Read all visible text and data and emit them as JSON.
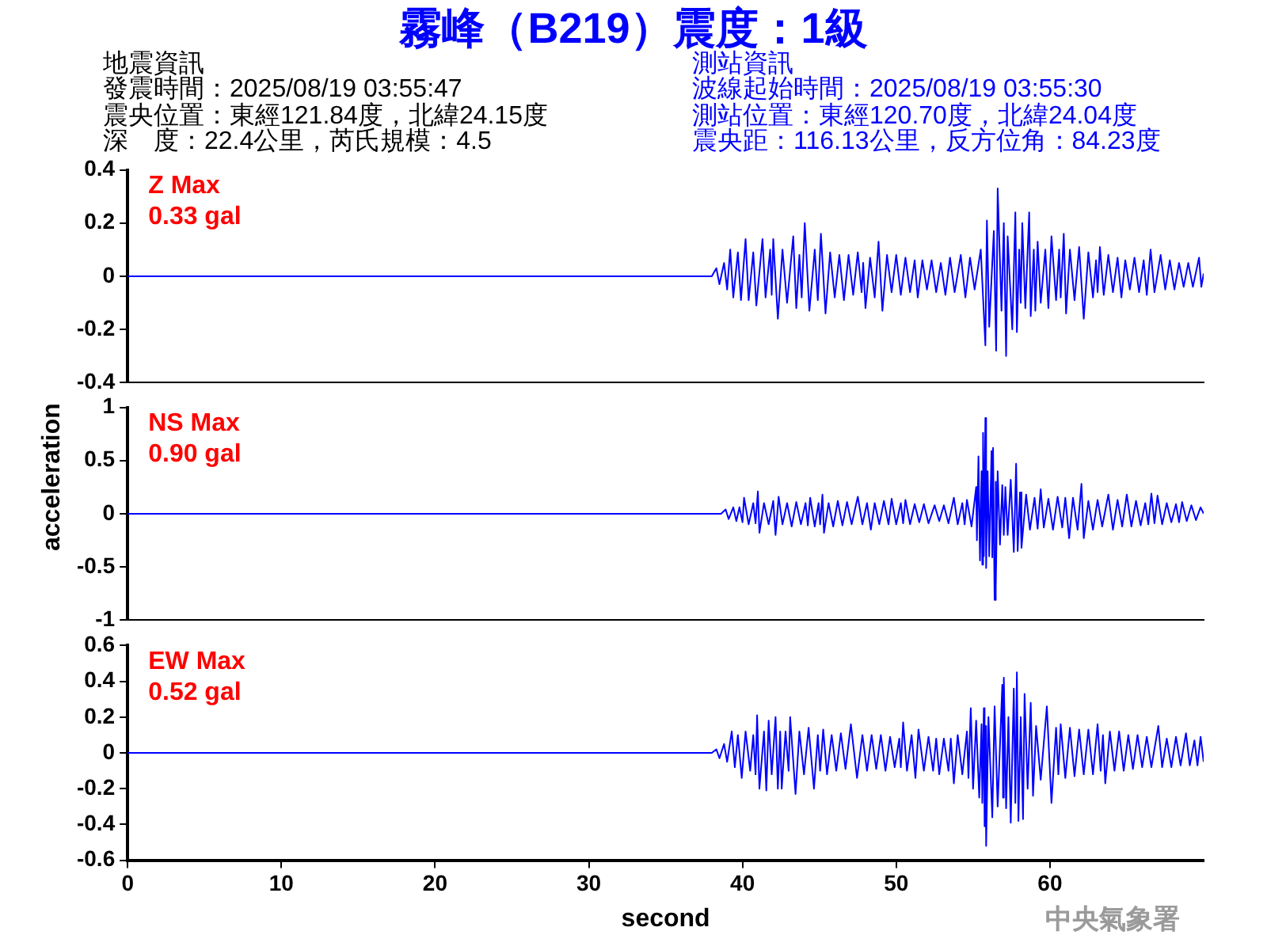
{
  "chart_data": [
    {
      "type": "line",
      "title": "霧峰（B219）震度：1級",
      "annotations": [
        "Z Max\n0.33 gal",
        "地震資訊",
        "發震時間：2025/08/19 03:55:47",
        "震央位置：東經121.84度，北緯24.15度",
        "深　度：22.4公里，芮氏規模：4.5",
        "測站資訊",
        "波線起始時間：2025/08/19 03:55:30",
        "測站位置：東經120.70度，北緯24.04度",
        "震央距：116.13公里，反方位角：84.23度"
      ],
      "xlim": [
        0,
        70
      ],
      "ylim": [
        -0.4,
        0.4
      ],
      "yticks": [
        -0.4,
        -0.2,
        0,
        0.2,
        0.4
      ],
      "tick_labels": "y",
      "series": [
        {
          "color": "#0000ff",
          "x": [
            0,
            10,
            20,
            30,
            38,
            38.3,
            38.5,
            38.8,
            39.0,
            39.2,
            39.4,
            39.7,
            39.9,
            40.2,
            40.4,
            40.7,
            40.9,
            41.3,
            41.5,
            41.8,
            41.9,
            42.0,
            42.3,
            42.6,
            42.9,
            43.3,
            43.5,
            43.7,
            43.85,
            44.05,
            44.35,
            44.7,
            44.9,
            45.1,
            45.4,
            45.7,
            46.0,
            46.3,
            46.6,
            46.9,
            47.2,
            47.5,
            47.75,
            47.85,
            48.0,
            48.3,
            48.6,
            48.85,
            49.1,
            49.4,
            49.7,
            50.0,
            50.3,
            50.6,
            50.9,
            51.2,
            51.4,
            51.7,
            52.0,
            52.3,
            52.6,
            52.9,
            53.2,
            53.5,
            53.8,
            54.2,
            54.5,
            54.8,
            55.1,
            55.5,
            55.8,
            55.9,
            56.05,
            56.35,
            56.5,
            56.6,
            56.85,
            57.0,
            57.15,
            57.25,
            57.55,
            57.75,
            57.85,
            58.0,
            58.1,
            58.2,
            58.4,
            58.65,
            58.75,
            58.95,
            59.05,
            59.2,
            59.4,
            59.7,
            59.9,
            60.1,
            60.4,
            60.6,
            60.7,
            60.9,
            61.05,
            61.3,
            61.6,
            61.9,
            62.2,
            62.5,
            62.8,
            63.0,
            63.1,
            63.25,
            63.5,
            63.8,
            64.1,
            64.4,
            64.65,
            64.9,
            65.2,
            65.5,
            65.8,
            66.1,
            66.3,
            66.55,
            66.8,
            67.2,
            67.5,
            67.8,
            68.1,
            68.4,
            68.7,
            69.0,
            69.3,
            69.7,
            69.85,
            70.0
          ],
          "values": [
            0,
            0,
            0,
            0,
            0,
            0.03,
            -0.03,
            0.05,
            -0.05,
            0.1,
            -0.08,
            0.09,
            -0.09,
            0.14,
            -0.09,
            0.09,
            -0.11,
            0.14,
            -0.08,
            0.1,
            -0.07,
            0.14,
            -0.16,
            0.1,
            -0.1,
            0.15,
            -0.12,
            0.08,
            -0.08,
            0.2,
            -0.13,
            0.1,
            -0.09,
            0.16,
            -0.14,
            0.09,
            -0.08,
            0.08,
            -0.09,
            0.08,
            -0.07,
            0.09,
            -0.06,
            0.05,
            -0.12,
            0.07,
            -0.08,
            0.13,
            -0.13,
            0.08,
            -0.06,
            0.08,
            -0.07,
            0.07,
            -0.06,
            0.06,
            -0.08,
            0.06,
            -0.05,
            0.06,
            -0.06,
            0.05,
            -0.07,
            0.07,
            -0.06,
            0.08,
            -0.08,
            0.07,
            -0.05,
            0.1,
            -0.26,
            0.21,
            -0.19,
            0.17,
            -0.28,
            0.33,
            -0.13,
            0.2,
            -0.3,
            0.15,
            -0.2,
            0.24,
            -0.21,
            0.1,
            -0.1,
            0.2,
            -0.12,
            0.24,
            -0.15,
            0.1,
            -0.13,
            0.13,
            -0.1,
            0.1,
            -0.12,
            0.15,
            -0.09,
            0.1,
            -0.08,
            0.16,
            -0.14,
            0.1,
            -0.09,
            0.11,
            -0.16,
            0.09,
            -0.08,
            0.06,
            -0.06,
            0.11,
            -0.07,
            0.08,
            -0.06,
            0.07,
            -0.08,
            0.06,
            -0.05,
            0.07,
            -0.06,
            0.06,
            -0.07,
            0.1,
            -0.06,
            0.08,
            -0.05,
            0.06,
            -0.05,
            0.05,
            -0.04,
            0.05,
            -0.04,
            0.07,
            -0.04,
            0.01
          ]
        }
      ]
    },
    {
      "type": "line",
      "ylabel": "acceleration",
      "annotations": [
        "NS Max\n0.90 gal"
      ],
      "xlim": [
        0,
        70
      ],
      "ylim": [
        -1,
        1
      ],
      "yticks": [
        -1,
        -0.5,
        0,
        0.5,
        1
      ],
      "tick_labels": "y",
      "series": [
        {
          "color": "#0000ff",
          "x": [
            0,
            10,
            20,
            30,
            38.6,
            38.9,
            39.1,
            39.4,
            39.6,
            39.8,
            40.0,
            40.1,
            40.4,
            40.7,
            40.85,
            41.0,
            41.1,
            41.4,
            41.7,
            42.0,
            42.15,
            42.35,
            42.6,
            42.9,
            43.2,
            43.5,
            43.8,
            44.1,
            44.25,
            44.4,
            44.7,
            44.95,
            45.05,
            45.2,
            45.3,
            45.6,
            45.9,
            46.2,
            46.5,
            46.8,
            47.1,
            47.5,
            47.8,
            48.1,
            48.35,
            48.6,
            48.9,
            49.2,
            49.5,
            49.7,
            50.0,
            50.3,
            50.45,
            50.6,
            50.9,
            51.2,
            51.5,
            51.8,
            52.1,
            52.5,
            52.8,
            53.1,
            53.4,
            53.75,
            54.0,
            54.3,
            54.45,
            54.6,
            54.9,
            55.2,
            55.25,
            55.35,
            55.45,
            55.55,
            55.6,
            55.65,
            55.7,
            55.8,
            55.85,
            55.95,
            56.05,
            56.2,
            56.25,
            56.3,
            56.4,
            56.45,
            56.5,
            56.6,
            56.75,
            56.9,
            57.0,
            57.1,
            57.25,
            57.45,
            57.65,
            57.8,
            57.9,
            58.05,
            58.15,
            58.45,
            58.7,
            59.0,
            59.2,
            59.4,
            59.6,
            59.9,
            60.2,
            60.5,
            60.8,
            61.0,
            61.25,
            61.5,
            61.8,
            62.05,
            62.2,
            62.5,
            62.8,
            63.1,
            63.4,
            63.8,
            64.1,
            64.4,
            64.7,
            65.0,
            65.3,
            65.6,
            65.9,
            66.2,
            66.4,
            66.6,
            66.8,
            67.0,
            67.3,
            67.6,
            67.9,
            68.2,
            68.4,
            68.6,
            68.9,
            69.2,
            69.5,
            69.8,
            70.0
          ],
          "values": [
            0,
            0,
            0,
            0,
            0,
            0.04,
            -0.05,
            0.06,
            -0.07,
            0.06,
            -0.08,
            0.15,
            -0.1,
            0.1,
            -0.09,
            0.21,
            -0.18,
            0.1,
            -0.1,
            0.12,
            -0.2,
            0.16,
            -0.1,
            0.1,
            -0.12,
            0.11,
            -0.1,
            0.1,
            -0.11,
            0.15,
            -0.12,
            0.1,
            -0.1,
            0.18,
            -0.18,
            0.1,
            -0.12,
            0.12,
            -0.11,
            0.11,
            -0.1,
            0.16,
            -0.1,
            0.1,
            -0.15,
            0.1,
            -0.1,
            0.12,
            -0.1,
            0.14,
            -0.1,
            0.1,
            -0.09,
            0.13,
            -0.1,
            0.09,
            -0.08,
            0.09,
            -0.09,
            0.08,
            -0.07,
            0.08,
            -0.09,
            0.15,
            -0.1,
            0.1,
            -0.1,
            0.13,
            -0.12,
            0.25,
            -0.25,
            0.54,
            -0.44,
            0.4,
            -0.48,
            0.76,
            -0.4,
            0.9,
            -0.51,
            0.4,
            -0.4,
            0.59,
            -0.41,
            0.62,
            -0.81,
            0.3,
            -0.7,
            0.4,
            -0.29,
            0.27,
            -0.2,
            0.25,
            -0.2,
            0.32,
            -0.36,
            0.47,
            -0.35,
            0.2,
            -0.32,
            0.18,
            -0.15,
            0.15,
            -0.14,
            0.23,
            -0.13,
            0.14,
            -0.15,
            0.16,
            -0.13,
            0.15,
            -0.23,
            0.15,
            -0.15,
            0.28,
            -0.23,
            0.12,
            -0.15,
            0.13,
            -0.12,
            0.18,
            -0.15,
            0.13,
            -0.12,
            0.18,
            -0.12,
            0.12,
            -0.11,
            0.1,
            -0.1,
            0.19,
            -0.09,
            0.17,
            -0.1,
            0.1,
            -0.08,
            0.09,
            -0.08,
            0.11,
            -0.07,
            0.08,
            -0.06,
            0.06,
            0
          ]
        }
      ]
    },
    {
      "type": "line",
      "xlabel": "second",
      "annotations": [
        "EW Max\n0.52 gal",
        "中央氣象署"
      ],
      "xlim": [
        0,
        70
      ],
      "xticks": [
        0,
        10,
        20,
        30,
        40,
        50,
        60
      ],
      "ylim": [
        -0.6,
        0.6
      ],
      "yticks": [
        -0.6,
        -0.4,
        -0.2,
        0,
        0.2,
        0.4,
        0.6
      ],
      "series": [
        {
          "color": "#0000ff",
          "x": [
            0,
            10,
            20,
            30,
            38.0,
            38.3,
            38.5,
            38.8,
            39.0,
            39.3,
            39.5,
            39.7,
            39.95,
            40.2,
            40.5,
            40.7,
            40.85,
            40.95,
            41.1,
            41.4,
            41.55,
            41.7,
            41.9,
            42.15,
            42.3,
            42.45,
            42.55,
            42.8,
            43.0,
            43.1,
            43.45,
            43.7,
            44.0,
            44.3,
            44.65,
            44.9,
            45.05,
            45.25,
            45.5,
            45.8,
            46.1,
            46.4,
            46.7,
            47.05,
            47.45,
            47.8,
            48.1,
            48.4,
            48.7,
            49.0,
            49.3,
            49.6,
            49.9,
            50.2,
            50.3,
            50.45,
            50.7,
            51.0,
            51.25,
            51.45,
            51.8,
            52.1,
            52.4,
            52.6,
            52.8,
            53.1,
            53.4,
            53.55,
            53.75,
            54.0,
            54.3,
            54.6,
            54.7,
            54.85,
            55.0,
            55.2,
            55.4,
            55.55,
            55.6,
            55.7,
            55.75,
            55.8,
            55.85,
            56.0,
            56.25,
            56.4,
            56.6,
            56.9,
            56.95,
            57.0,
            57.15,
            57.3,
            57.45,
            57.65,
            57.75,
            57.85,
            57.95,
            58.1,
            58.25,
            58.35,
            58.55,
            58.75,
            58.9,
            59.1,
            59.4,
            59.8,
            60.1,
            60.4,
            60.55,
            60.7,
            61.0,
            61.3,
            61.6,
            61.9,
            62.2,
            62.5,
            62.8,
            63.1,
            63.3,
            63.45,
            63.6,
            63.9,
            64.2,
            64.5,
            64.8,
            65.1,
            65.4,
            65.7,
            66.0,
            66.3,
            66.6,
            67.05,
            67.3,
            67.6,
            67.9,
            68.2,
            68.5,
            68.85,
            69.1,
            69.4,
            69.6,
            69.8,
            70.0
          ],
          "values": [
            0,
            0,
            0,
            0,
            0,
            0.02,
            -0.03,
            0.05,
            -0.05,
            0.12,
            -0.08,
            0.1,
            -0.14,
            0.12,
            -0.1,
            0.1,
            -0.12,
            0.21,
            -0.2,
            0.12,
            -0.21,
            0.18,
            -0.12,
            0.2,
            -0.2,
            0.12,
            -0.2,
            0.12,
            -0.1,
            0.2,
            -0.23,
            0.12,
            -0.12,
            0.14,
            -0.2,
            0.1,
            -0.1,
            0.13,
            -0.12,
            0.1,
            -0.1,
            0.11,
            -0.09,
            0.16,
            -0.14,
            0.1,
            -0.1,
            0.1,
            -0.09,
            0.1,
            -0.1,
            0.09,
            -0.08,
            0.08,
            -0.08,
            0.17,
            -0.1,
            0.1,
            -0.14,
            0.13,
            -0.1,
            0.09,
            -0.1,
            0.08,
            -0.12,
            0.08,
            -0.1,
            0.08,
            -0.17,
            0.1,
            -0.12,
            0.12,
            -0.14,
            0.25,
            -0.2,
            0.18,
            -0.25,
            0.16,
            -0.28,
            0.25,
            -0.41,
            0.15,
            -0.52,
            0.2,
            -0.36,
            0.26,
            -0.3,
            0.38,
            -0.25,
            0.42,
            -0.31,
            0.2,
            -0.39,
            0.36,
            -0.28,
            0.45,
            -0.38,
            0.2,
            -0.37,
            0.33,
            -0.2,
            0.28,
            -0.24,
            0.15,
            -0.15,
            0.26,
            -0.28,
            0.14,
            -0.12,
            0.16,
            -0.14,
            0.14,
            -0.13,
            0.13,
            -0.12,
            0.13,
            -0.12,
            0.16,
            -0.1,
            0.1,
            -0.17,
            0.12,
            -0.1,
            0.12,
            -0.1,
            0.1,
            -0.09,
            0.1,
            -0.08,
            0.09,
            -0.08,
            0.15,
            -0.08,
            0.08,
            -0.08,
            0.09,
            -0.07,
            0.11,
            -0.07,
            0.07,
            -0.07,
            0.09,
            -0.05
          ]
        }
      ]
    }
  ]
}
